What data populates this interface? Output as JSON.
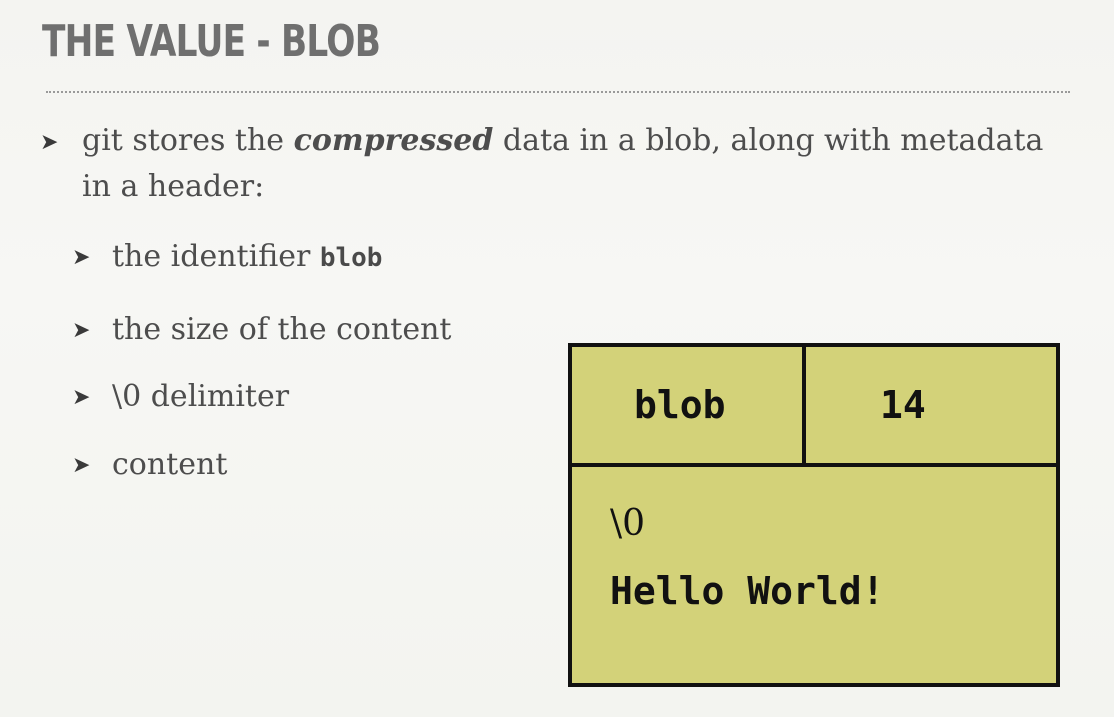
{
  "slide": {
    "title": "THE VALUE - BLOB",
    "bullets": {
      "main_pre": "git stores the ",
      "main_em": "compressed",
      "main_post": " data in a blob, along with metadata in a header:",
      "sub1_text": "the identifier ",
      "sub1_code": "blob",
      "sub2": "the size of the content",
      "sub3": "\\0 delimiter",
      "sub4": "content"
    },
    "arrow_glyph": "➤"
  },
  "diagram": {
    "type_label": "blob",
    "size_label": "14",
    "delimiter_label": "\\0",
    "content_label": "Hello World!",
    "fill_color": "#d3d279",
    "border_color": "#111111"
  }
}
